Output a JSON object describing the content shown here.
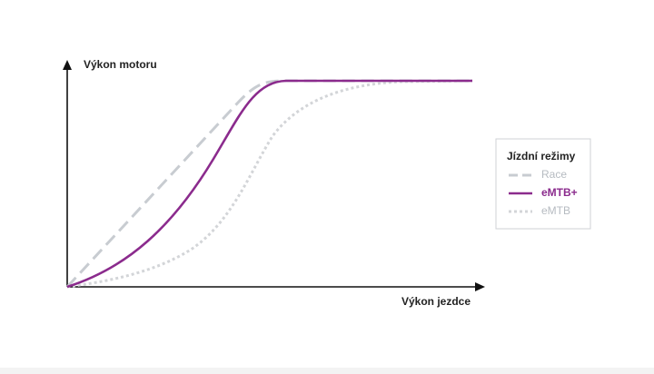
{
  "axis_labels": {
    "y": "Výkon motoru",
    "x": "Výkon jezdce"
  },
  "legend": {
    "title": "Jízdní režimy",
    "items": [
      "Race",
      "eMTB+",
      "eMTB"
    ]
  }
}
